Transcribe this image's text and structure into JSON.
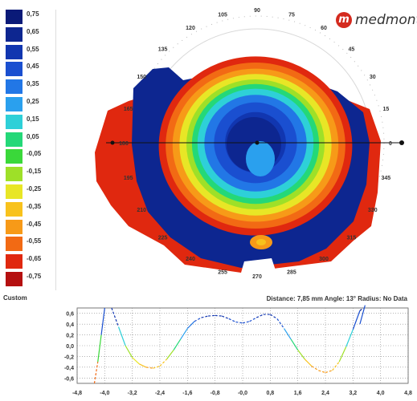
{
  "brand": {
    "logo_glyph": "m",
    "name": "medmont"
  },
  "color_scale": {
    "entries": [
      {
        "label": "0,75",
        "color": "#0a1a78"
      },
      {
        "label": "0,65",
        "color": "#0d2690"
      },
      {
        "label": "0,55",
        "color": "#1136b0"
      },
      {
        "label": "0,45",
        "color": "#1a4fd0"
      },
      {
        "label": "0,35",
        "color": "#2277e6"
      },
      {
        "label": "0,25",
        "color": "#2aa0ee"
      },
      {
        "label": "0,15",
        "color": "#2ed0d8"
      },
      {
        "label": "0,05",
        "color": "#24d878"
      },
      {
        "label": "-0,05",
        "color": "#3ad83a"
      },
      {
        "label": "-0,15",
        "color": "#9ee028"
      },
      {
        "label": "-0,25",
        "color": "#e8e626"
      },
      {
        "label": "-0,35",
        "color": "#f8c21c"
      },
      {
        "label": "-0,45",
        "color": "#f79a18"
      },
      {
        "label": "-0,55",
        "color": "#f26a14"
      },
      {
        "label": "-0,65",
        "color": "#e0280f"
      },
      {
        "label": "-0,75",
        "color": "#b51010"
      }
    ],
    "mode_label": "Custom"
  },
  "angle_labels": [
    "0",
    "15",
    "30",
    "45",
    "60",
    "75",
    "90",
    "105",
    "120",
    "135",
    "150",
    "165",
    "180",
    "195",
    "210",
    "225",
    "240",
    "255",
    "270",
    "285",
    "300",
    "315",
    "330",
    "345"
  ],
  "readout": "Distance: 7,85 mm Angle: 13° Radius:  No Data",
  "chart_data": {
    "type": "line",
    "x_tick_labels": [
      "-4,8",
      "-4,0",
      "-3,2",
      "-2,4",
      "-1,6",
      "-0,8",
      "-0,0",
      "0,8",
      "1,6",
      "2,4",
      "3,2",
      "4,0",
      "4,8"
    ],
    "y_tick_labels": [
      "0,6",
      "0,4",
      "0,2",
      "0,0",
      "-0,2",
      "-0,4",
      "-0,6"
    ],
    "xlim": [
      -4.8,
      4.8
    ],
    "ylim": [
      -0.7,
      0.7
    ],
    "grid": true,
    "series": [
      {
        "x": [
          -4.3,
          -4.2,
          -4.1,
          -4.0,
          -3.9,
          -3.8,
          -3.6,
          -3.4,
          -3.2,
          -3.0,
          -2.8,
          -2.6,
          -2.4,
          -2.2,
          -2.0,
          -1.8,
          -1.6,
          -1.4,
          -1.2,
          -1.0,
          -0.8,
          -0.6,
          -0.4,
          -0.2,
          0.0,
          0.2,
          0.4,
          0.6,
          0.8,
          1.0,
          1.2,
          1.4,
          1.6,
          1.8,
          2.0,
          2.2,
          2.4,
          2.6,
          2.8,
          3.0,
          3.2,
          3.4,
          3.5
        ],
        "y": [
          -0.7,
          -0.3,
          0.2,
          0.75,
          null,
          0.75,
          0.35,
          0.0,
          -0.22,
          -0.34,
          -0.4,
          -0.42,
          -0.38,
          -0.25,
          -0.08,
          0.12,
          0.32,
          0.45,
          0.52,
          0.55,
          0.56,
          0.55,
          0.5,
          0.44,
          0.42,
          0.45,
          0.52,
          0.58,
          0.58,
          0.5,
          0.32,
          0.12,
          -0.08,
          -0.25,
          -0.38,
          -0.46,
          -0.5,
          -0.46,
          -0.3,
          -0.02,
          0.3,
          0.65,
          0.75
        ]
      }
    ]
  }
}
